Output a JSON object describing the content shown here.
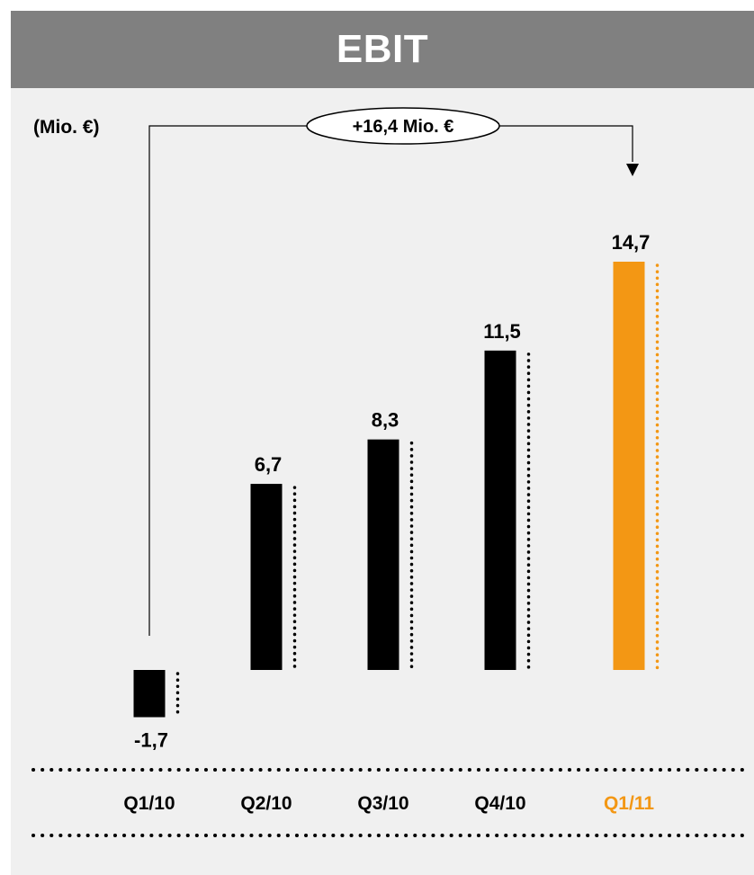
{
  "header": {
    "title": "EBIT"
  },
  "unit_label": "(Mio. €)",
  "colors": {
    "bar": "#000000",
    "highlight": "#f39714",
    "header_bg": "#808080",
    "panel_bg": "#f0f0f0"
  },
  "chart_data": {
    "type": "bar",
    "title": "EBIT",
    "ylabel": "(Mio. €)",
    "categories": [
      "Q1/10",
      "Q2/10",
      "Q3/10",
      "Q4/10",
      "Q1/11"
    ],
    "values": [
      -1.7,
      6.7,
      8.3,
      11.5,
      14.7
    ],
    "value_labels": [
      "-1,7",
      "6,7",
      "8,3",
      "11,5",
      "14,7"
    ],
    "highlight_index": 4,
    "annotation": {
      "text": "+16,4 Mio. €",
      "from": "Q1/10",
      "to": "Q1/11"
    },
    "grid": false,
    "legend": "none"
  }
}
